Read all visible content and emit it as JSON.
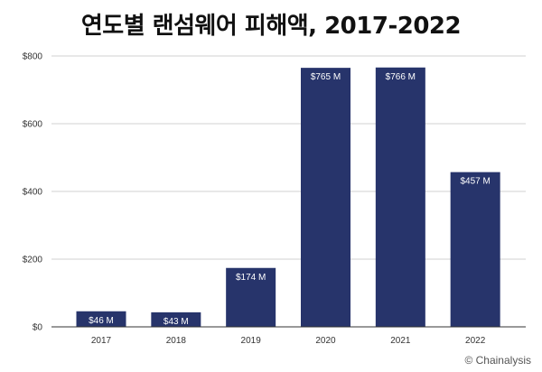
{
  "title": "연도별 랜섬웨어 피해액, 2017-2022",
  "watermark": "© Chainalysis",
  "colors": {
    "bar": "#27346b",
    "grid": "#d0d0d0",
    "axis": "#333333"
  },
  "chart_data": {
    "type": "bar",
    "categories": [
      "2017",
      "2018",
      "2019",
      "2020",
      "2021",
      "2022"
    ],
    "values": [
      46,
      43,
      174,
      765,
      766,
      457
    ],
    "data_labels": [
      "$46 M",
      "$43 M",
      "$174 M",
      "$765 M",
      "$766 M",
      "$457 M"
    ],
    "y_ticks": [
      0,
      200,
      400,
      600,
      800
    ],
    "y_tick_labels": [
      "$0",
      "$200",
      "$400",
      "$600",
      "$800"
    ],
    "ylim": [
      0,
      800
    ],
    "grid": true,
    "legend": "none"
  }
}
